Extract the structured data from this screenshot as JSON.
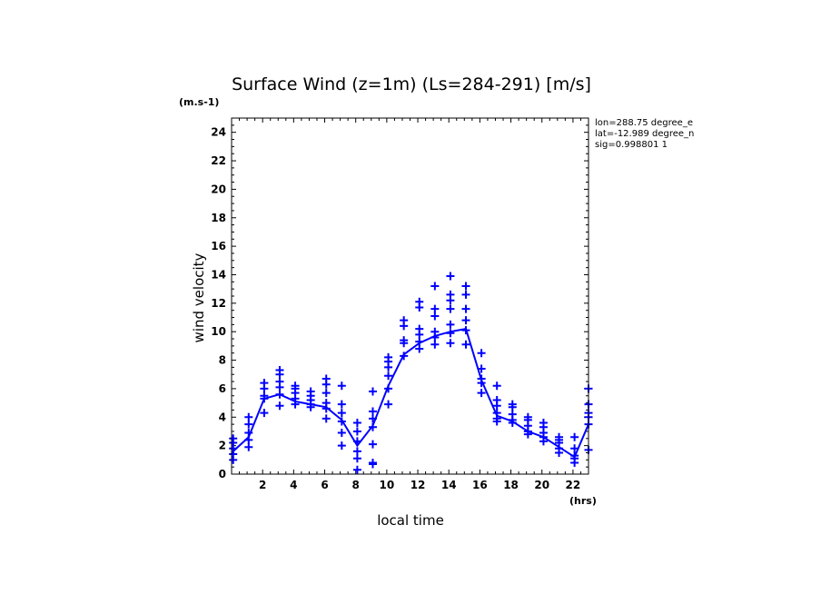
{
  "chart_data": {
    "type": "line",
    "title": "Surface Wind (z=1m) (Ls=284-291) [m/s]",
    "ylabel": "wind velocity",
    "xlabel": "local time",
    "y_unit": "(m.s-1)",
    "x_unit": "(hrs)",
    "info_lines": [
      "lon=288.75 degree_e",
      "lat=-12.989 degree_n",
      "sig=0.998801 1"
    ],
    "xlim": [
      0,
      23
    ],
    "ylim": [
      0,
      25
    ],
    "x_ticks": [
      "2",
      "4",
      "6",
      "8",
      "10",
      "12",
      "14",
      "16",
      "18",
      "20",
      "22"
    ],
    "y_ticks": [
      "0",
      "2",
      "4",
      "6",
      "8",
      "10",
      "12",
      "14",
      "16",
      "18",
      "20",
      "22",
      "24"
    ],
    "color": "#0000ff",
    "series": [
      {
        "style": "line",
        "x": [
          0.1,
          1.1,
          2.1,
          3.1,
          4.1,
          5.1,
          6.1,
          7.1,
          8.1,
          9.1,
          10.1,
          11.1,
          12.1,
          13.1,
          14.1,
          15.1,
          16.1,
          17.1,
          18.1,
          19.1,
          20.1,
          21.1,
          22.1,
          23.0
        ],
        "y": [
          1.6,
          2.6,
          5.3,
          5.6,
          5.1,
          4.9,
          4.7,
          3.8,
          2.0,
          3.4,
          6.2,
          8.4,
          9.2,
          9.7,
          10.0,
          10.2,
          6.6,
          4.1,
          3.7,
          3.0,
          2.6,
          1.9,
          1.2,
          3.5
        ]
      },
      {
        "style": "markers",
        "points": [
          [
            0.1,
            1.0
          ],
          [
            0.1,
            1.4
          ],
          [
            0.1,
            1.8
          ],
          [
            0.1,
            2.2
          ],
          [
            0.1,
            2.5
          ],
          [
            1.1,
            1.9
          ],
          [
            1.1,
            2.4
          ],
          [
            1.1,
            2.9
          ],
          [
            1.1,
            3.5
          ],
          [
            1.1,
            4.0
          ],
          [
            2.1,
            4.3
          ],
          [
            2.1,
            5.3
          ],
          [
            2.1,
            5.5
          ],
          [
            2.1,
            6.0
          ],
          [
            2.1,
            6.4
          ],
          [
            3.1,
            4.8
          ],
          [
            3.1,
            5.6
          ],
          [
            3.1,
            6.1
          ],
          [
            3.1,
            6.5
          ],
          [
            3.1,
            7.0
          ],
          [
            3.1,
            7.3
          ],
          [
            4.1,
            4.9
          ],
          [
            4.1,
            5.3
          ],
          [
            4.1,
            5.7
          ],
          [
            4.1,
            6.0
          ],
          [
            4.1,
            6.2
          ],
          [
            5.1,
            4.7
          ],
          [
            5.1,
            4.9
          ],
          [
            5.1,
            5.2
          ],
          [
            5.1,
            5.5
          ],
          [
            5.1,
            5.8
          ],
          [
            6.1,
            3.9
          ],
          [
            6.1,
            4.6
          ],
          [
            6.1,
            5.0
          ],
          [
            6.1,
            5.7
          ],
          [
            6.1,
            6.3
          ],
          [
            6.1,
            6.7
          ],
          [
            7.1,
            2.0
          ],
          [
            7.1,
            2.9
          ],
          [
            7.1,
            3.7
          ],
          [
            7.1,
            4.3
          ],
          [
            7.1,
            4.9
          ],
          [
            7.1,
            6.2
          ],
          [
            8.1,
            0.3
          ],
          [
            8.1,
            1.1
          ],
          [
            8.1,
            1.6
          ],
          [
            8.1,
            2.3
          ],
          [
            8.1,
            3.0
          ],
          [
            8.1,
            3.6
          ],
          [
            9.1,
            0.7
          ],
          [
            9.1,
            0.8
          ],
          [
            9.1,
            2.1
          ],
          [
            9.1,
            3.3
          ],
          [
            9.1,
            3.9
          ],
          [
            9.1,
            4.4
          ],
          [
            9.1,
            5.8
          ],
          [
            10.1,
            4.9
          ],
          [
            10.1,
            6.0
          ],
          [
            10.1,
            6.9
          ],
          [
            10.1,
            7.5
          ],
          [
            10.1,
            7.9
          ],
          [
            10.1,
            8.2
          ],
          [
            11.1,
            8.3
          ],
          [
            11.1,
            9.2
          ],
          [
            11.1,
            9.4
          ],
          [
            11.1,
            10.4
          ],
          [
            11.1,
            10.8
          ],
          [
            12.1,
            8.8
          ],
          [
            12.1,
            9.3
          ],
          [
            12.1,
            9.8
          ],
          [
            12.1,
            10.2
          ],
          [
            12.1,
            11.7
          ],
          [
            12.1,
            12.1
          ],
          [
            13.1,
            9.1
          ],
          [
            13.1,
            9.6
          ],
          [
            13.1,
            10.0
          ],
          [
            13.1,
            11.1
          ],
          [
            13.1,
            11.6
          ],
          [
            13.1,
            13.2
          ],
          [
            14.1,
            9.2
          ],
          [
            14.1,
            9.9
          ],
          [
            14.1,
            10.5
          ],
          [
            14.1,
            11.6
          ],
          [
            14.1,
            12.2
          ],
          [
            14.1,
            12.6
          ],
          [
            14.1,
            13.9
          ],
          [
            15.1,
            9.1
          ],
          [
            15.1,
            10.1
          ],
          [
            15.1,
            10.8
          ],
          [
            15.1,
            11.6
          ],
          [
            15.1,
            12.6
          ],
          [
            15.1,
            13.2
          ],
          [
            16.1,
            5.7
          ],
          [
            16.1,
            6.4
          ],
          [
            16.1,
            6.7
          ],
          [
            16.1,
            7.4
          ],
          [
            16.1,
            8.5
          ],
          [
            17.1,
            3.7
          ],
          [
            17.1,
            3.9
          ],
          [
            17.1,
            4.3
          ],
          [
            17.1,
            4.8
          ],
          [
            17.1,
            5.2
          ],
          [
            17.1,
            6.2
          ],
          [
            18.1,
            3.6
          ],
          [
            18.1,
            3.8
          ],
          [
            18.1,
            4.2
          ],
          [
            18.1,
            4.7
          ],
          [
            18.1,
            4.9
          ],
          [
            19.1,
            2.8
          ],
          [
            19.1,
            3.0
          ],
          [
            19.1,
            3.4
          ],
          [
            19.1,
            3.8
          ],
          [
            19.1,
            4.0
          ],
          [
            20.1,
            2.3
          ],
          [
            20.1,
            2.6
          ],
          [
            20.1,
            2.9
          ],
          [
            20.1,
            3.3
          ],
          [
            20.1,
            3.6
          ],
          [
            21.1,
            1.5
          ],
          [
            21.1,
            1.8
          ],
          [
            21.1,
            2.2
          ],
          [
            21.1,
            2.4
          ],
          [
            21.1,
            2.6
          ],
          [
            22.1,
            0.8
          ],
          [
            22.1,
            1.1
          ],
          [
            22.1,
            1.3
          ],
          [
            22.1,
            1.8
          ],
          [
            22.1,
            2.6
          ],
          [
            23.0,
            1.7
          ],
          [
            23.0,
            3.5
          ],
          [
            23.0,
            4.0
          ],
          [
            23.0,
            4.3
          ],
          [
            23.0,
            4.9
          ],
          [
            23.0,
            6.0
          ]
        ]
      }
    ]
  }
}
